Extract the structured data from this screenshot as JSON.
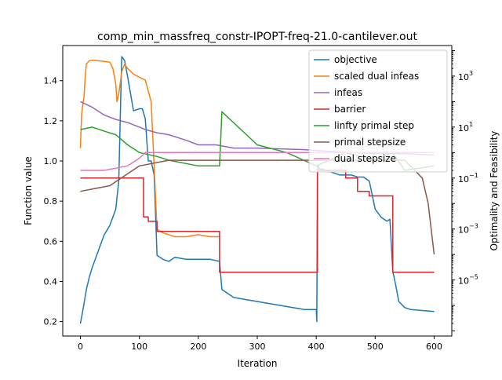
{
  "chart_data": {
    "type": "line",
    "title": "comp_min_massfreq_constr-IPOPT-freq-21.0-cantilever.out",
    "xlabel": "Iteration",
    "ylabel_left": "Function value",
    "ylabel_right": "Optimality and Feasibility",
    "xlim": [
      -30,
      630
    ],
    "ylim_left": [
      0.128,
      1.575
    ],
    "ylim_right_log10": [
      -7.2,
      4.2
    ],
    "right_scale": "log",
    "x_ticks": [
      0,
      100,
      200,
      300,
      400,
      500,
      600
    ],
    "y_left_ticks": [
      0.2,
      0.4,
      0.6,
      0.8,
      1.0,
      1.2,
      1.4
    ],
    "y_right_ticks": [
      {
        "exp": 3,
        "label": "10",
        "sup": "3"
      },
      {
        "exp": 1,
        "label": "10",
        "sup": "1"
      },
      {
        "exp": -1,
        "label": "10",
        "sup": "−1"
      },
      {
        "exp": -3,
        "label": "10",
        "sup": "−3"
      },
      {
        "exp": -5,
        "label": "10",
        "sup": "−5"
      }
    ],
    "legend_position": "top-right",
    "series": [
      {
        "name": "objective",
        "axis": "left",
        "color": "#1f77b4",
        "x": [
          0,
          5,
          10,
          15,
          20,
          30,
          40,
          50,
          60,
          65,
          70,
          75,
          80,
          90,
          100,
          105,
          110,
          115,
          120,
          125,
          130,
          140,
          150,
          160,
          180,
          200,
          220,
          236,
          240,
          260,
          280,
          300,
          320,
          340,
          360,
          380,
          400,
          401,
          402,
          403,
          405,
          410,
          420,
          440,
          460,
          470,
          480,
          490,
          500,
          510,
          520,
          525,
          530,
          535,
          540,
          550,
          560,
          580,
          600
        ],
        "values": [
          0.19,
          0.27,
          0.36,
          0.42,
          0.47,
          0.55,
          0.63,
          0.68,
          0.76,
          0.9,
          1.52,
          1.5,
          1.42,
          1.25,
          1.26,
          1.26,
          1.21,
          1.0,
          1.0,
          0.93,
          0.53,
          0.51,
          0.5,
          0.52,
          0.51,
          0.51,
          0.51,
          0.5,
          0.36,
          0.32,
          0.31,
          0.3,
          0.29,
          0.28,
          0.27,
          0.26,
          0.26,
          0.2,
          0.98,
          0.98,
          0.96,
          0.96,
          0.95,
          0.93,
          0.93,
          0.92,
          0.92,
          0.9,
          0.76,
          0.72,
          0.7,
          0.71,
          0.45,
          0.38,
          0.3,
          0.27,
          0.26,
          0.255,
          0.25
        ]
      },
      {
        "name": "scaled dual infeas",
        "axis": "right",
        "color": "#ff7f0e",
        "x": [
          0,
          2,
          4,
          6,
          8,
          10,
          15,
          20,
          30,
          40,
          50,
          55,
          60,
          62,
          65,
          70,
          75,
          80,
          90,
          100,
          110,
          120,
          130,
          140,
          150,
          160,
          180,
          200,
          220,
          236
        ],
        "values": [
          1.5,
          30,
          80,
          150,
          900,
          3000,
          4000,
          4200,
          4000,
          3800,
          3500,
          2000,
          500,
          100,
          200,
          1500,
          3000,
          2000,
          1200,
          900,
          700,
          100,
          0.001,
          0.0007,
          0.0006,
          0.0005,
          0.0005,
          0.0006,
          0.0005,
          0.0005
        ]
      },
      {
        "name": "infeas",
        "axis": "right",
        "color": "#9467bd",
        "x": [
          0,
          20,
          40,
          60,
          80,
          100,
          110,
          130,
          150,
          180,
          200,
          230,
          260,
          300,
          340,
          380,
          400,
          430,
          460,
          500,
          550,
          600
        ],
        "values": [
          100,
          60,
          30,
          20,
          15,
          10,
          8,
          6,
          5,
          3,
          2,
          2,
          1.5,
          1.5,
          1.4,
          1.3,
          1.2,
          1.1,
          1.0,
          0.9,
          0.9,
          0.8
        ]
      },
      {
        "name": "barrier",
        "axis": "right",
        "color": "#d62728",
        "x": [
          0,
          107,
          107,
          115,
          115,
          130,
          130,
          236,
          236,
          402,
          402,
          450,
          450,
          470,
          470,
          490,
          490,
          530,
          530,
          600
        ],
        "values": [
          0.1,
          0.1,
          0.003,
          0.003,
          0.002,
          0.002,
          0.0008,
          0.0008,
          2e-05,
          2e-05,
          0.2,
          0.2,
          0.1,
          0.1,
          0.03,
          0.03,
          0.02,
          0.02,
          2e-05,
          2e-05
        ]
      },
      {
        "name": "linfty primal step",
        "axis": "right",
        "color": "#2ca02c",
        "x": [
          0,
          20,
          40,
          60,
          80,
          100,
          130,
          150,
          200,
          236,
          240,
          300,
          350,
          400,
          450,
          500,
          530,
          550,
          600
        ],
        "values": [
          8,
          10,
          7,
          5,
          2,
          1,
          0.7,
          0.5,
          0.3,
          0.3,
          40,
          2,
          1,
          0.3,
          1,
          0.5,
          1,
          0.2,
          0.3
        ]
      },
      {
        "name": "primal stepsize",
        "axis": "right",
        "color": "#8c564b",
        "x": [
          0,
          50,
          100,
          150,
          200,
          250,
          300,
          350,
          400,
          450,
          500,
          550,
          580,
          590,
          600
        ],
        "values": [
          0.03,
          0.05,
          0.3,
          0.5,
          0.5,
          0.5,
          0.5,
          0.5,
          0.5,
          0.5,
          0.5,
          0.5,
          0.1,
          0.01,
          0.0001
        ]
      },
      {
        "name": "dual stepsize",
        "axis": "right",
        "color": "#e377c2",
        "x": [
          0,
          40,
          80,
          100,
          110,
          600
        ],
        "values": [
          0.2,
          0.2,
          0.3,
          0.6,
          1,
          1
        ]
      }
    ]
  }
}
